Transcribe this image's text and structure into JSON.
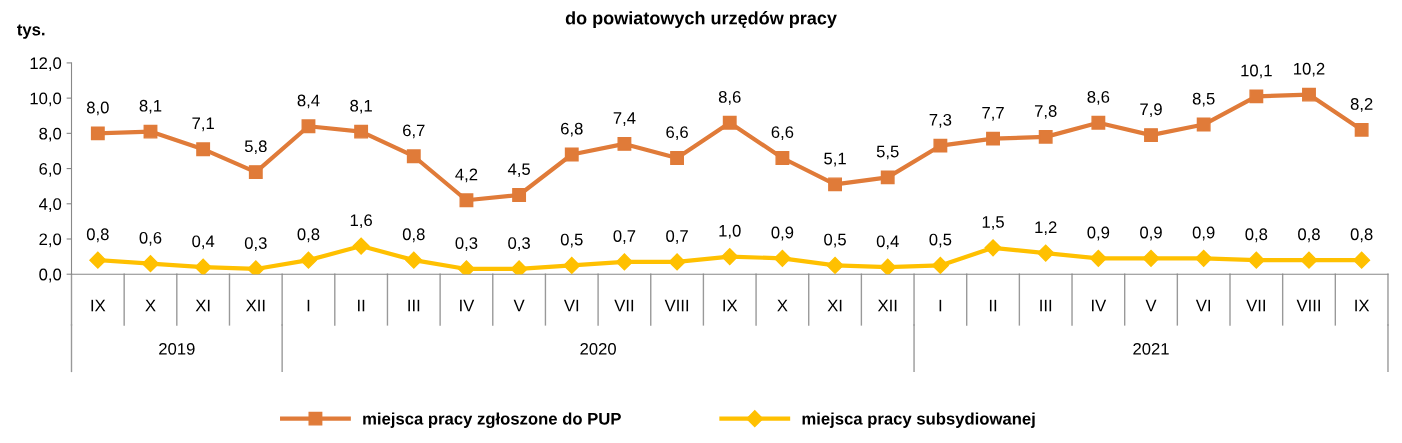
{
  "chart_data": {
    "type": "line",
    "title": "do powiatowych urzędów pracy",
    "ylabel": "tys.",
    "categories": [
      "IX",
      "X",
      "XI",
      "XII",
      "I",
      "II",
      "III",
      "IV",
      "V",
      "VI",
      "VII",
      "VIII",
      "IX",
      "X",
      "XI",
      "XII",
      "I",
      "II",
      "III",
      "IV",
      "V",
      "VI",
      "VII",
      "VIII",
      "IX"
    ],
    "annotations": [
      "2019",
      "2020",
      "2021"
    ],
    "series": [
      {
        "name": "miejsca pracy zgłoszone do PUP",
        "color": "#e07b39",
        "marker": "square",
        "values": [
          8.0,
          8.1,
          7.1,
          5.8,
          8.4,
          8.1,
          6.7,
          4.2,
          4.5,
          6.8,
          7.4,
          6.6,
          8.6,
          6.6,
          5.1,
          5.5,
          7.3,
          7.7,
          7.8,
          8.6,
          7.9,
          8.5,
          10.1,
          10.2,
          8.2
        ],
        "value_labels": [
          "8,0",
          "8,1",
          "7,1",
          "5,8",
          "8,4",
          "8,1",
          "6,7",
          "4,2",
          "4,5",
          "6,8",
          "7,4",
          "6,6",
          "8,6",
          "6,6",
          "5,1",
          "5,5",
          "7,3",
          "7,7",
          "7,8",
          "8,6",
          "7,9",
          "8,5",
          "10,1",
          "10,2",
          "8,2"
        ]
      },
      {
        "name": "miejsca pracy subsydiowanej",
        "color": "#ffc000",
        "marker": "diamond",
        "values": [
          0.8,
          0.6,
          0.4,
          0.3,
          0.8,
          1.6,
          0.8,
          0.3,
          0.3,
          0.5,
          0.7,
          0.7,
          1.0,
          0.9,
          0.5,
          0.4,
          0.5,
          1.5,
          1.2,
          0.9,
          0.9,
          0.9,
          0.8,
          0.8,
          0.8
        ],
        "value_labels": [
          "0,8",
          "0,6",
          "0,4",
          "0,3",
          "0,8",
          "1,6",
          "0,8",
          "0,3",
          "0,3",
          "0,5",
          "0,7",
          "0,7",
          "1,0",
          "0,9",
          "0,5",
          "0,4",
          "0,5",
          "1,5",
          "1,2",
          "0,9",
          "0,9",
          "0,9",
          "0,8",
          "0,8",
          "0,8"
        ]
      }
    ],
    "ylim": [
      0,
      12
    ],
    "yticks": [
      {
        "value": 0,
        "label": "0,0"
      },
      {
        "value": 2,
        "label": "2,0"
      },
      {
        "value": 4,
        "label": "4,0"
      },
      {
        "value": 6,
        "label": "6,0"
      },
      {
        "value": 8,
        "label": "8,0"
      },
      {
        "value": 10,
        "label": "10,0"
      },
      {
        "value": 12,
        "label": "12,0"
      }
    ],
    "grid": false,
    "legend": "bottom",
    "line_style": "solid"
  }
}
